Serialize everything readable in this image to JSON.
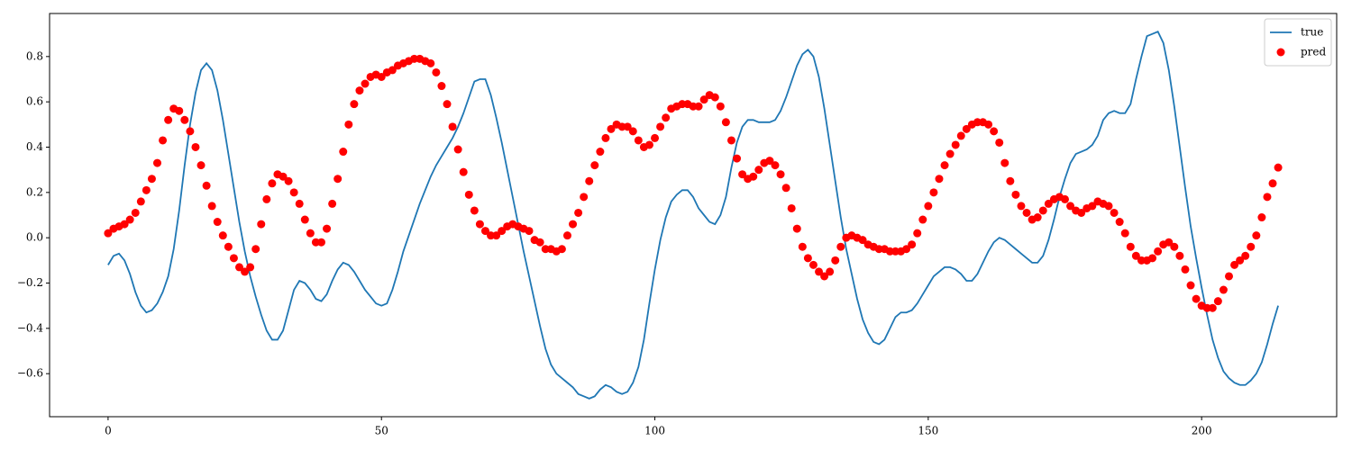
{
  "chart_data": {
    "type": "line",
    "x": [
      0,
      1,
      2,
      3,
      4,
      5,
      6,
      7,
      8,
      9,
      10,
      11,
      12,
      13,
      14,
      15,
      16,
      17,
      18,
      19,
      20,
      21,
      22,
      23,
      24,
      25,
      26,
      27,
      28,
      29,
      30,
      31,
      32,
      33,
      34,
      35,
      36,
      37,
      38,
      39,
      40,
      41,
      42,
      43,
      44,
      45,
      46,
      47,
      48,
      49,
      50,
      51,
      52,
      53,
      54,
      55,
      56,
      57,
      58,
      59,
      60,
      61,
      62,
      63,
      64,
      65,
      66,
      67,
      68,
      69,
      70,
      71,
      72,
      73,
      74,
      75,
      76,
      77,
      78,
      79,
      80,
      81,
      82,
      83,
      84,
      85,
      86,
      87,
      88,
      89,
      90,
      91,
      92,
      93,
      94,
      95,
      96,
      97,
      98,
      99,
      100,
      101,
      102,
      103,
      104,
      105,
      106,
      107,
      108,
      109,
      110,
      111,
      112,
      113,
      114,
      115,
      116,
      117,
      118,
      119,
      120,
      121,
      122,
      123,
      124,
      125,
      126,
      127,
      128,
      129,
      130,
      131,
      132,
      133,
      134,
      135,
      136,
      137,
      138,
      139,
      140,
      141,
      142,
      143,
      144,
      145,
      146,
      147,
      148,
      149,
      150,
      151,
      152,
      153,
      154,
      155,
      156,
      157,
      158,
      159,
      160,
      161,
      162,
      163,
      164,
      165,
      166,
      167,
      168,
      169,
      170,
      171,
      172,
      173,
      174,
      175,
      176,
      177,
      178,
      179,
      180,
      181,
      182,
      183,
      184,
      185,
      186,
      187,
      188,
      189,
      190,
      191,
      192,
      193,
      194,
      195,
      196,
      197,
      198,
      199,
      200,
      201,
      202,
      203,
      204,
      205,
      206,
      207,
      208,
      209,
      210,
      211,
      212,
      213,
      214
    ],
    "series": [
      {
        "name": "true",
        "type": "line",
        "color": "#1f77b4",
        "values": [
          -0.12,
          -0.08,
          -0.07,
          -0.1,
          -0.16,
          -0.24,
          -0.3,
          -0.33,
          -0.32,
          -0.29,
          -0.24,
          -0.17,
          -0.05,
          0.12,
          0.32,
          0.5,
          0.64,
          0.74,
          0.77,
          0.74,
          0.65,
          0.52,
          0.37,
          0.22,
          0.07,
          -0.06,
          -0.17,
          -0.26,
          -0.34,
          -0.41,
          -0.45,
          -0.45,
          -0.41,
          -0.32,
          -0.23,
          -0.19,
          -0.2,
          -0.23,
          -0.27,
          -0.28,
          -0.25,
          -0.19,
          -0.14,
          -0.11,
          -0.12,
          -0.15,
          -0.19,
          -0.23,
          -0.26,
          -0.29,
          -0.3,
          -0.29,
          -0.23,
          -0.15,
          -0.06,
          0.01,
          0.08,
          0.15,
          0.21,
          0.27,
          0.32,
          0.36,
          0.4,
          0.44,
          0.49,
          0.55,
          0.62,
          0.69,
          0.7,
          0.7,
          0.63,
          0.53,
          0.42,
          0.3,
          0.18,
          0.06,
          -0.06,
          -0.17,
          -0.28,
          -0.39,
          -0.49,
          -0.56,
          -0.6,
          -0.62,
          -0.64,
          -0.66,
          -0.69,
          -0.7,
          -0.71,
          -0.7,
          -0.67,
          -0.65,
          -0.66,
          -0.68,
          -0.69,
          -0.68,
          -0.64,
          -0.57,
          -0.45,
          -0.29,
          -0.14,
          -0.01,
          0.09,
          0.16,
          0.19,
          0.21,
          0.21,
          0.18,
          0.13,
          0.1,
          0.07,
          0.06,
          0.1,
          0.18,
          0.31,
          0.42,
          0.49,
          0.52,
          0.52,
          0.51,
          0.51,
          0.51,
          0.52,
          0.56,
          0.62,
          0.69,
          0.76,
          0.81,
          0.83,
          0.8,
          0.71,
          0.57,
          0.41,
          0.25,
          0.09,
          -0.05,
          -0.16,
          -0.27,
          -0.36,
          -0.42,
          -0.46,
          -0.47,
          -0.45,
          -0.4,
          -0.35,
          -0.33,
          -0.33,
          -0.32,
          -0.29,
          -0.25,
          -0.21,
          -0.17,
          -0.15,
          -0.13,
          -0.13,
          -0.14,
          -0.16,
          -0.19,
          -0.19,
          -0.16,
          -0.11,
          -0.06,
          -0.02,
          0.0,
          -0.01,
          -0.03,
          -0.05,
          -0.07,
          -0.09,
          -0.11,
          -0.11,
          -0.08,
          -0.01,
          0.08,
          0.18,
          0.26,
          0.33,
          0.37,
          0.38,
          0.39,
          0.41,
          0.45,
          0.52,
          0.55,
          0.56,
          0.55,
          0.55,
          0.59,
          0.7,
          0.8,
          0.89,
          0.9,
          0.91,
          0.86,
          0.74,
          0.58,
          0.4,
          0.22,
          0.05,
          -0.09,
          -0.22,
          -0.34,
          -0.45,
          -0.53,
          -0.59,
          -0.62,
          -0.64,
          -0.65,
          -0.65,
          -0.63,
          -0.6,
          -0.55,
          -0.47,
          -0.38,
          -0.3
        ]
      },
      {
        "name": "pred",
        "type": "scatter",
        "color": "#ff0000",
        "values": [
          0.02,
          0.04,
          0.05,
          0.06,
          0.08,
          0.11,
          0.16,
          0.21,
          0.26,
          0.33,
          0.43,
          0.52,
          0.57,
          0.56,
          0.52,
          0.47,
          0.4,
          0.32,
          0.23,
          0.14,
          0.07,
          0.01,
          -0.04,
          -0.09,
          -0.13,
          -0.15,
          -0.13,
          -0.05,
          0.06,
          0.17,
          0.24,
          0.28,
          0.27,
          0.25,
          0.2,
          0.15,
          0.08,
          0.02,
          -0.02,
          -0.02,
          0.04,
          0.15,
          0.26,
          0.38,
          0.5,
          0.59,
          0.65,
          0.68,
          0.71,
          0.72,
          0.71,
          0.73,
          0.74,
          0.76,
          0.77,
          0.78,
          0.79,
          0.79,
          0.78,
          0.77,
          0.73,
          0.67,
          0.59,
          0.49,
          0.39,
          0.29,
          0.19,
          0.12,
          0.06,
          0.03,
          0.01,
          0.01,
          0.03,
          0.05,
          0.06,
          0.05,
          0.04,
          0.03,
          -0.01,
          -0.02,
          -0.05,
          -0.05,
          -0.06,
          -0.05,
          0.01,
          0.06,
          0.11,
          0.18,
          0.25,
          0.32,
          0.38,
          0.44,
          0.48,
          0.5,
          0.49,
          0.49,
          0.47,
          0.43,
          0.4,
          0.41,
          0.44,
          0.49,
          0.53,
          0.57,
          0.58,
          0.59,
          0.59,
          0.58,
          0.58,
          0.61,
          0.63,
          0.62,
          0.58,
          0.51,
          0.43,
          0.35,
          0.28,
          0.26,
          0.27,
          0.3,
          0.33,
          0.34,
          0.32,
          0.28,
          0.22,
          0.13,
          0.04,
          -0.04,
          -0.09,
          -0.12,
          -0.15,
          -0.17,
          -0.15,
          -0.1,
          -0.04,
          0.0,
          0.01,
          0.0,
          -0.01,
          -0.03,
          -0.04,
          -0.05,
          -0.05,
          -0.06,
          -0.06,
          -0.06,
          -0.05,
          -0.03,
          0.02,
          0.08,
          0.14,
          0.2,
          0.26,
          0.32,
          0.37,
          0.41,
          0.45,
          0.48,
          0.5,
          0.51,
          0.51,
          0.5,
          0.47,
          0.42,
          0.33,
          0.25,
          0.19,
          0.14,
          0.11,
          0.08,
          0.09,
          0.12,
          0.15,
          0.17,
          0.18,
          0.17,
          0.14,
          0.12,
          0.11,
          0.13,
          0.14,
          0.16,
          0.15,
          0.14,
          0.11,
          0.07,
          0.02,
          -0.04,
          -0.08,
          -0.1,
          -0.1,
          -0.09,
          -0.06,
          -0.03,
          -0.02,
          -0.04,
          -0.08,
          -0.14,
          -0.21,
          -0.27,
          -0.3,
          -0.31,
          -0.31,
          -0.28,
          -0.23,
          -0.17,
          -0.12,
          -0.1,
          -0.08,
          -0.04,
          0.01,
          0.09,
          0.18,
          0.24,
          0.31
        ]
      }
    ],
    "xlim": [
      -10.7,
      224.7
    ],
    "ylim": [
      -0.79,
      0.99
    ],
    "xticks": [
      0,
      50,
      100,
      150,
      200
    ],
    "yticks": [
      {
        "value": -0.6,
        "label": "−0.6"
      },
      {
        "value": -0.4,
        "label": "−0.4"
      },
      {
        "value": -0.2,
        "label": "−0.2"
      },
      {
        "value": 0,
        "label": "0.0"
      },
      0.2,
      0.4,
      0.6,
      0.8
    ],
    "legend": "upper right"
  }
}
